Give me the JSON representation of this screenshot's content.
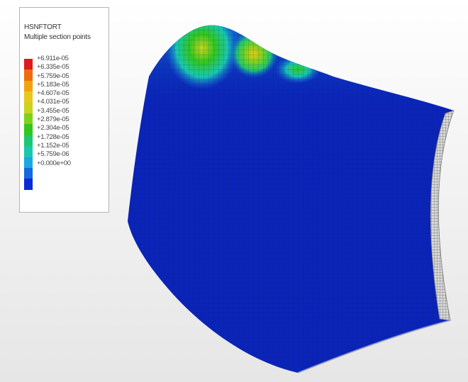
{
  "legend": {
    "variable": "HSNFTORT",
    "subtitle": "Multiple section points",
    "labels": [
      "+6.911e-05",
      "+6.335e-05",
      "+5.759e-05",
      "+5.183e-05",
      "+4.607e-05",
      "+4.031e-05",
      "+3.455e-05",
      "+2.879e-05",
      "+2.304e-05",
      "+1.728e-05",
      "+1.152e-05",
      "+5.759e-06",
      "+0.000e+00"
    ],
    "colors": [
      "#e01a1a",
      "#ee6c10",
      "#f4a20c",
      "#e8c81a",
      "#c8d41e",
      "#7ed21a",
      "#30c81e",
      "#1ec86e",
      "#18c8b0",
      "#1aa8e0",
      "#1468e0",
      "#0a2ad8"
    ]
  },
  "model": {
    "shell_color": "#0a24b8",
    "edge_color": "#8a8a8a"
  }
}
